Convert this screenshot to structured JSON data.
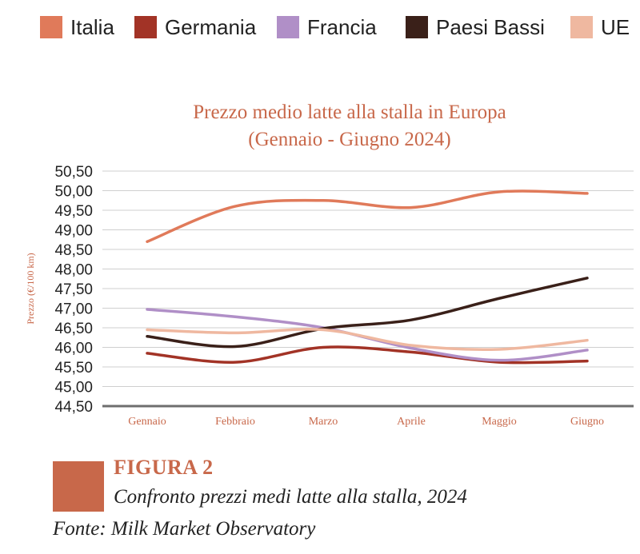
{
  "legend": {
    "items": [
      {
        "label": "Italia",
        "color": "#e07a5a"
      },
      {
        "label": "Germania",
        "color": "#a23326"
      },
      {
        "label": "Francia",
        "color": "#b08fc7"
      },
      {
        "label": "Paesi Bassi",
        "color": "#3a2019"
      },
      {
        "label": "UE",
        "color": "#efb8a0"
      }
    ]
  },
  "chart_data": {
    "type": "line",
    "title": "Prezzo medio latte alla stalla in Europa",
    "subtitle": "(Gennaio - Giugno 2024)",
    "xlabel": "",
    "ylabel": "Prezzo (€/100 km)",
    "categories": [
      "Gennaio",
      "Febbraio",
      "Marzo",
      "Aprile",
      "Maggio",
      "Giugno"
    ],
    "ylim": [
      44.5,
      50.5
    ],
    "yticks": [
      "44,50",
      "45,00",
      "45,50",
      "46,00",
      "46,50",
      "47,00",
      "47,50",
      "48,00",
      "48,50",
      "49,00",
      "49,50",
      "50,00",
      "50,50"
    ],
    "grid": true,
    "series": [
      {
        "name": "Italia",
        "color": "#e07a5a",
        "values": [
          48.7,
          49.6,
          49.75,
          49.57,
          49.97,
          49.93
        ]
      },
      {
        "name": "Germania",
        "color": "#a23326",
        "values": [
          45.85,
          45.62,
          46.0,
          45.88,
          45.62,
          45.65
        ]
      },
      {
        "name": "Francia",
        "color": "#b08fc7",
        "values": [
          46.97,
          46.78,
          46.5,
          45.98,
          45.67,
          45.93
        ]
      },
      {
        "name": "Paesi Bassi",
        "color": "#3a2019",
        "values": [
          46.28,
          46.02,
          46.48,
          46.7,
          47.25,
          47.77
        ]
      },
      {
        "name": "UE",
        "color": "#efb8a0",
        "values": [
          46.45,
          46.37,
          46.45,
          46.05,
          45.95,
          46.18
        ]
      }
    ]
  },
  "figure": {
    "label": "FIGURA 2",
    "caption": "Confronto prezzi medi latte alla stalla, 2024",
    "source": "Fonte: Milk Market Observatory",
    "accent_color": "#c8684a"
  }
}
